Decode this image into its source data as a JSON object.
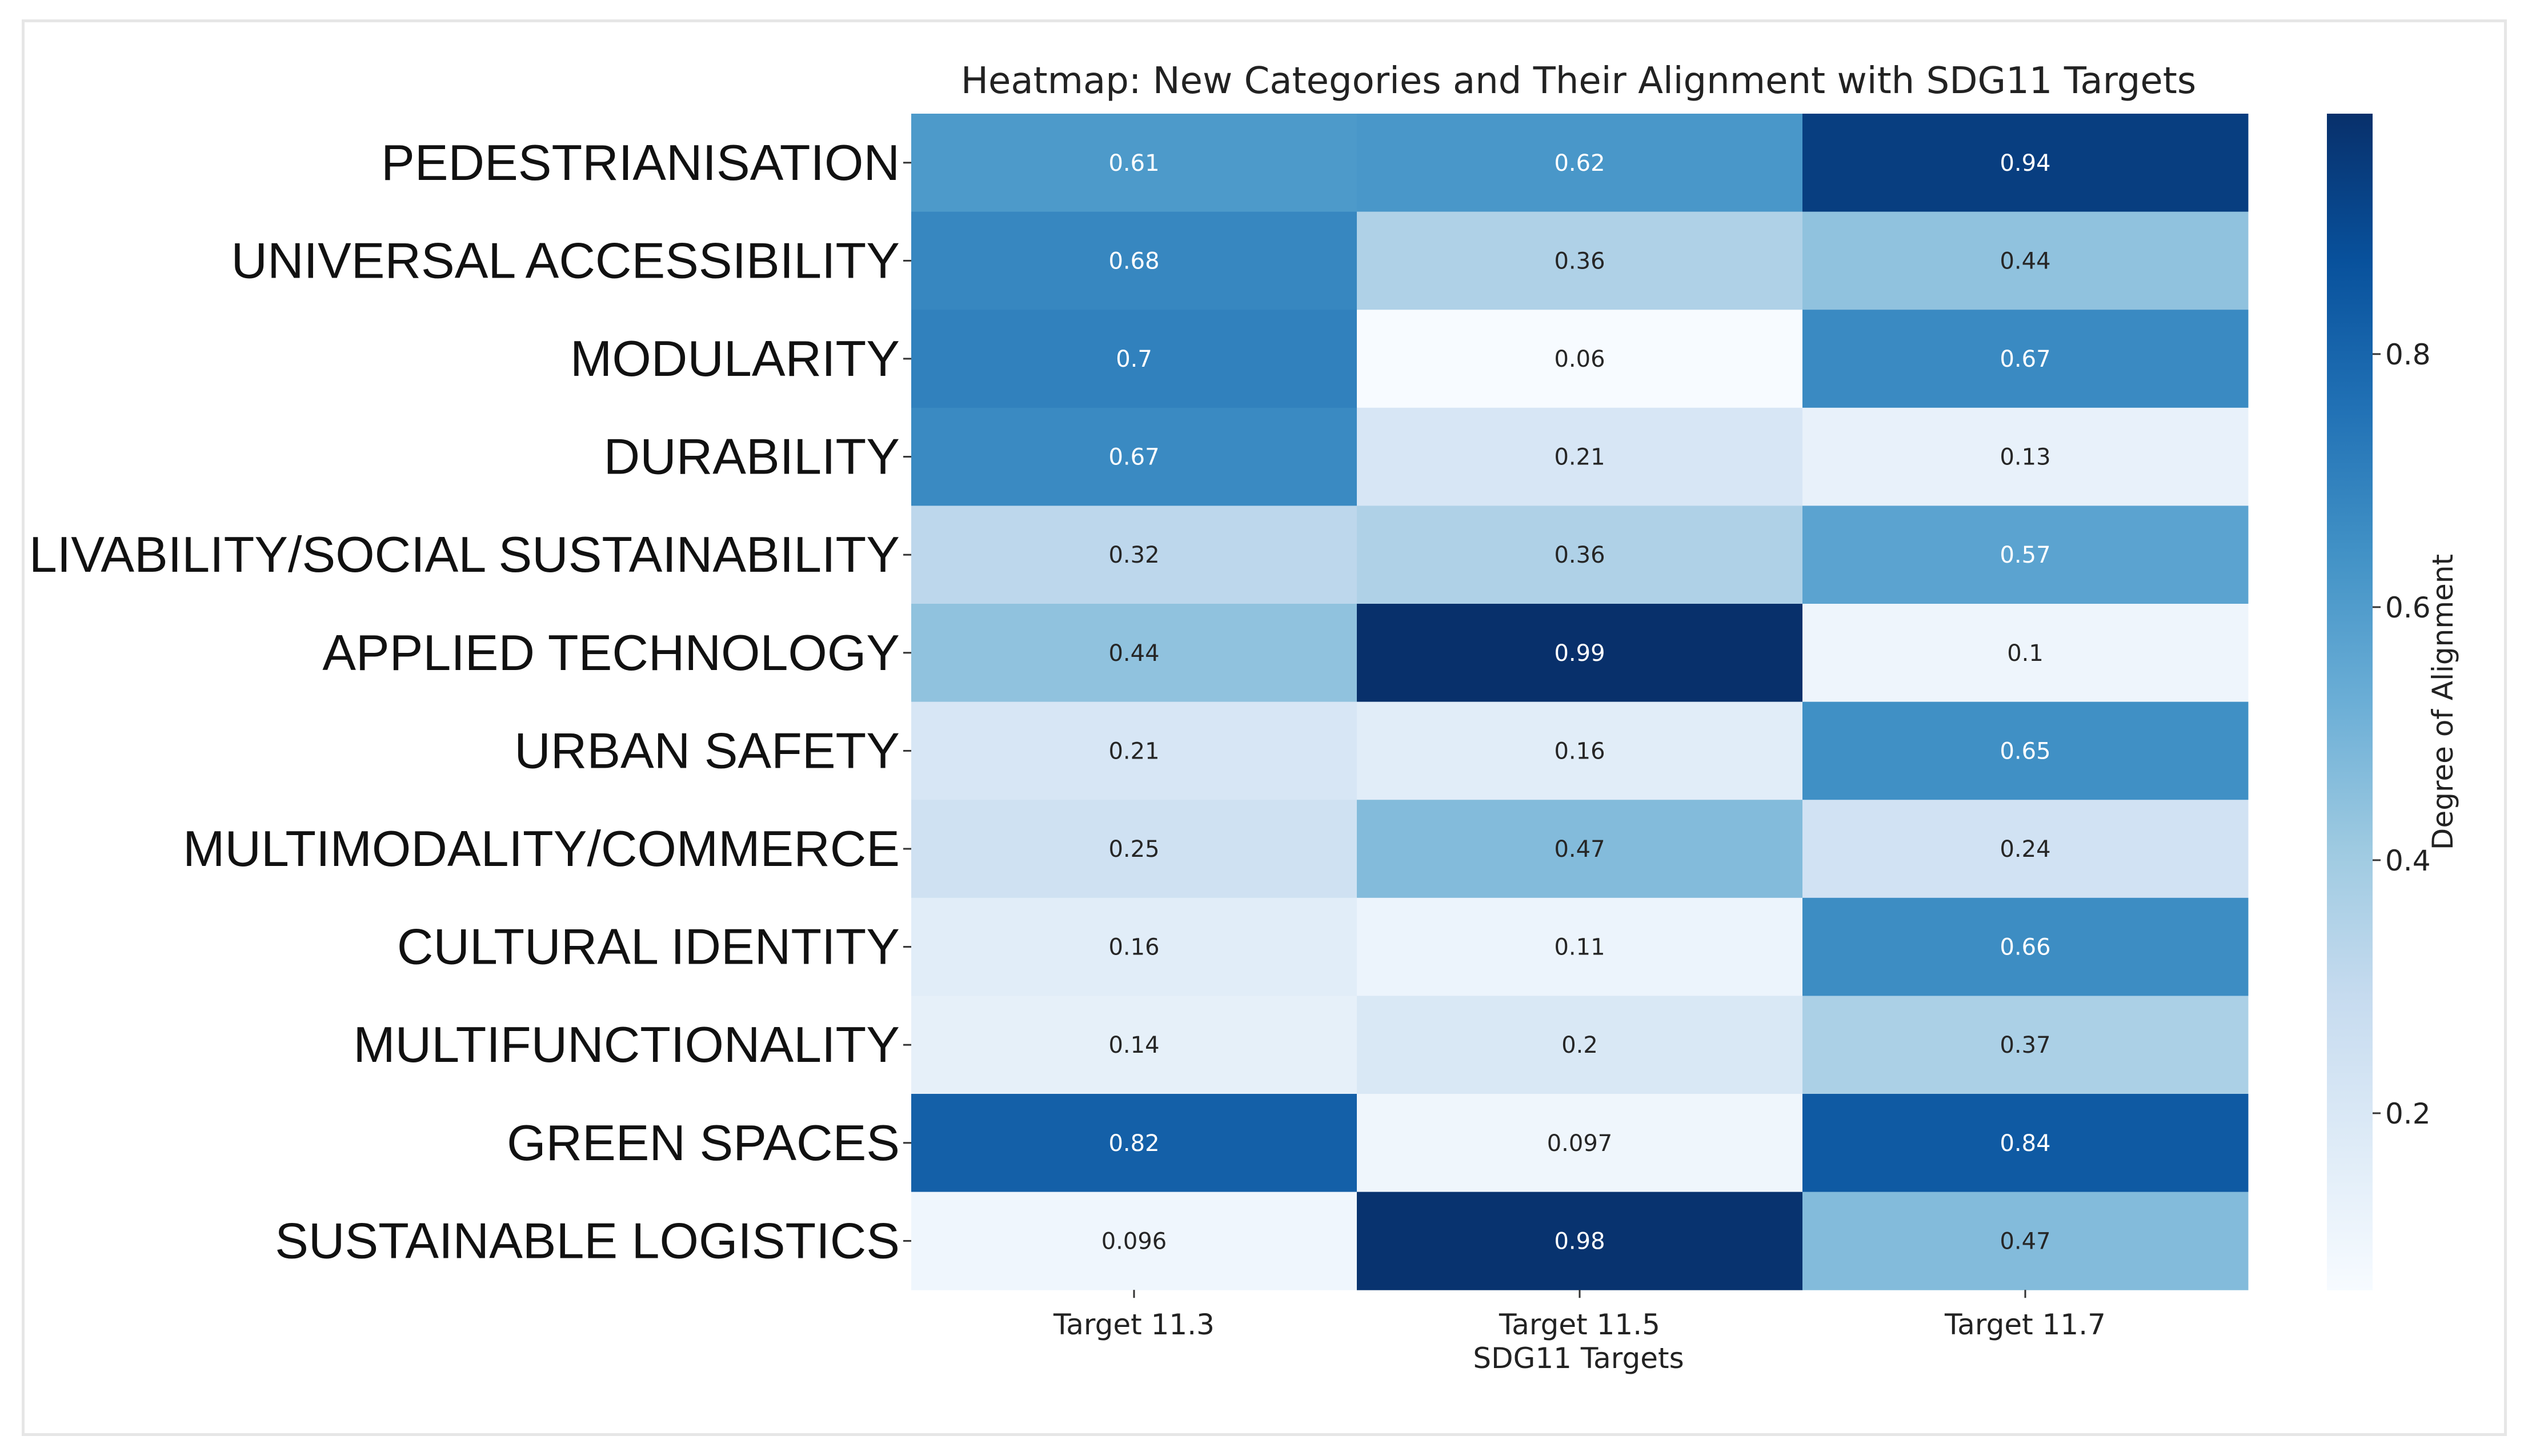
{
  "chart_data": {
    "type": "heatmap",
    "title": "Heatmap: New Categories and Their Alignment with SDG11 Targets",
    "xlabel": "SDG11 Targets",
    "ylabel": "",
    "columns": [
      "Target 11.3",
      "Target 11.5",
      "Target 11.7"
    ],
    "rows": [
      "PEDESTRIANISATION",
      "UNIVERSAL ACCESSIBILITY",
      "MODULARITY",
      "DURABILITY",
      "LIVABILITY/SOCIAL SUSTAINABILITY",
      "APPLIED TECHNOLOGY",
      "URBAN SAFETY",
      "MULTIMODALITY/COMMERCE",
      "CULTURAL IDENTITY",
      "MULTIFUNCTIONALITY",
      "GREEN SPACES",
      "SUSTAINABLE LOGISTICS"
    ],
    "values": [
      [
        0.61,
        0.62,
        0.94
      ],
      [
        0.68,
        0.36,
        0.44
      ],
      [
        0.7,
        0.06,
        0.67
      ],
      [
        0.67,
        0.21,
        0.13
      ],
      [
        0.32,
        0.36,
        0.57
      ],
      [
        0.44,
        0.99,
        0.1
      ],
      [
        0.21,
        0.16,
        0.65
      ],
      [
        0.25,
        0.47,
        0.24
      ],
      [
        0.16,
        0.11,
        0.66
      ],
      [
        0.14,
        0.2,
        0.37
      ],
      [
        0.82,
        0.097,
        0.84
      ],
      [
        0.096,
        0.98,
        0.47
      ]
    ],
    "value_labels": [
      [
        "0.61",
        "0.62",
        "0.94"
      ],
      [
        "0.68",
        "0.36",
        "0.44"
      ],
      [
        "0.7",
        "0.06",
        "0.67"
      ],
      [
        "0.67",
        "0.21",
        "0.13"
      ],
      [
        "0.32",
        "0.36",
        "0.57"
      ],
      [
        "0.44",
        "0.99",
        "0.1"
      ],
      [
        "0.21",
        "0.16",
        "0.65"
      ],
      [
        "0.25",
        "0.47",
        "0.24"
      ],
      [
        "0.16",
        "0.11",
        "0.66"
      ],
      [
        "0.14",
        "0.2",
        "0.37"
      ],
      [
        "0.82",
        "0.097",
        "0.84"
      ],
      [
        "0.096",
        "0.98",
        "0.47"
      ]
    ],
    "colormap": "Blues",
    "value_range": [
      0.06,
      0.99
    ],
    "colorbar": {
      "label": "Degree of Alignment",
      "ticks": [
        0.2,
        0.4,
        0.6,
        0.8
      ],
      "tick_labels": [
        "0.2",
        "0.4",
        "0.6",
        "0.8"
      ]
    },
    "annotation_colors": {
      "on_dark": "#ffffff",
      "on_light": "#262626"
    }
  }
}
